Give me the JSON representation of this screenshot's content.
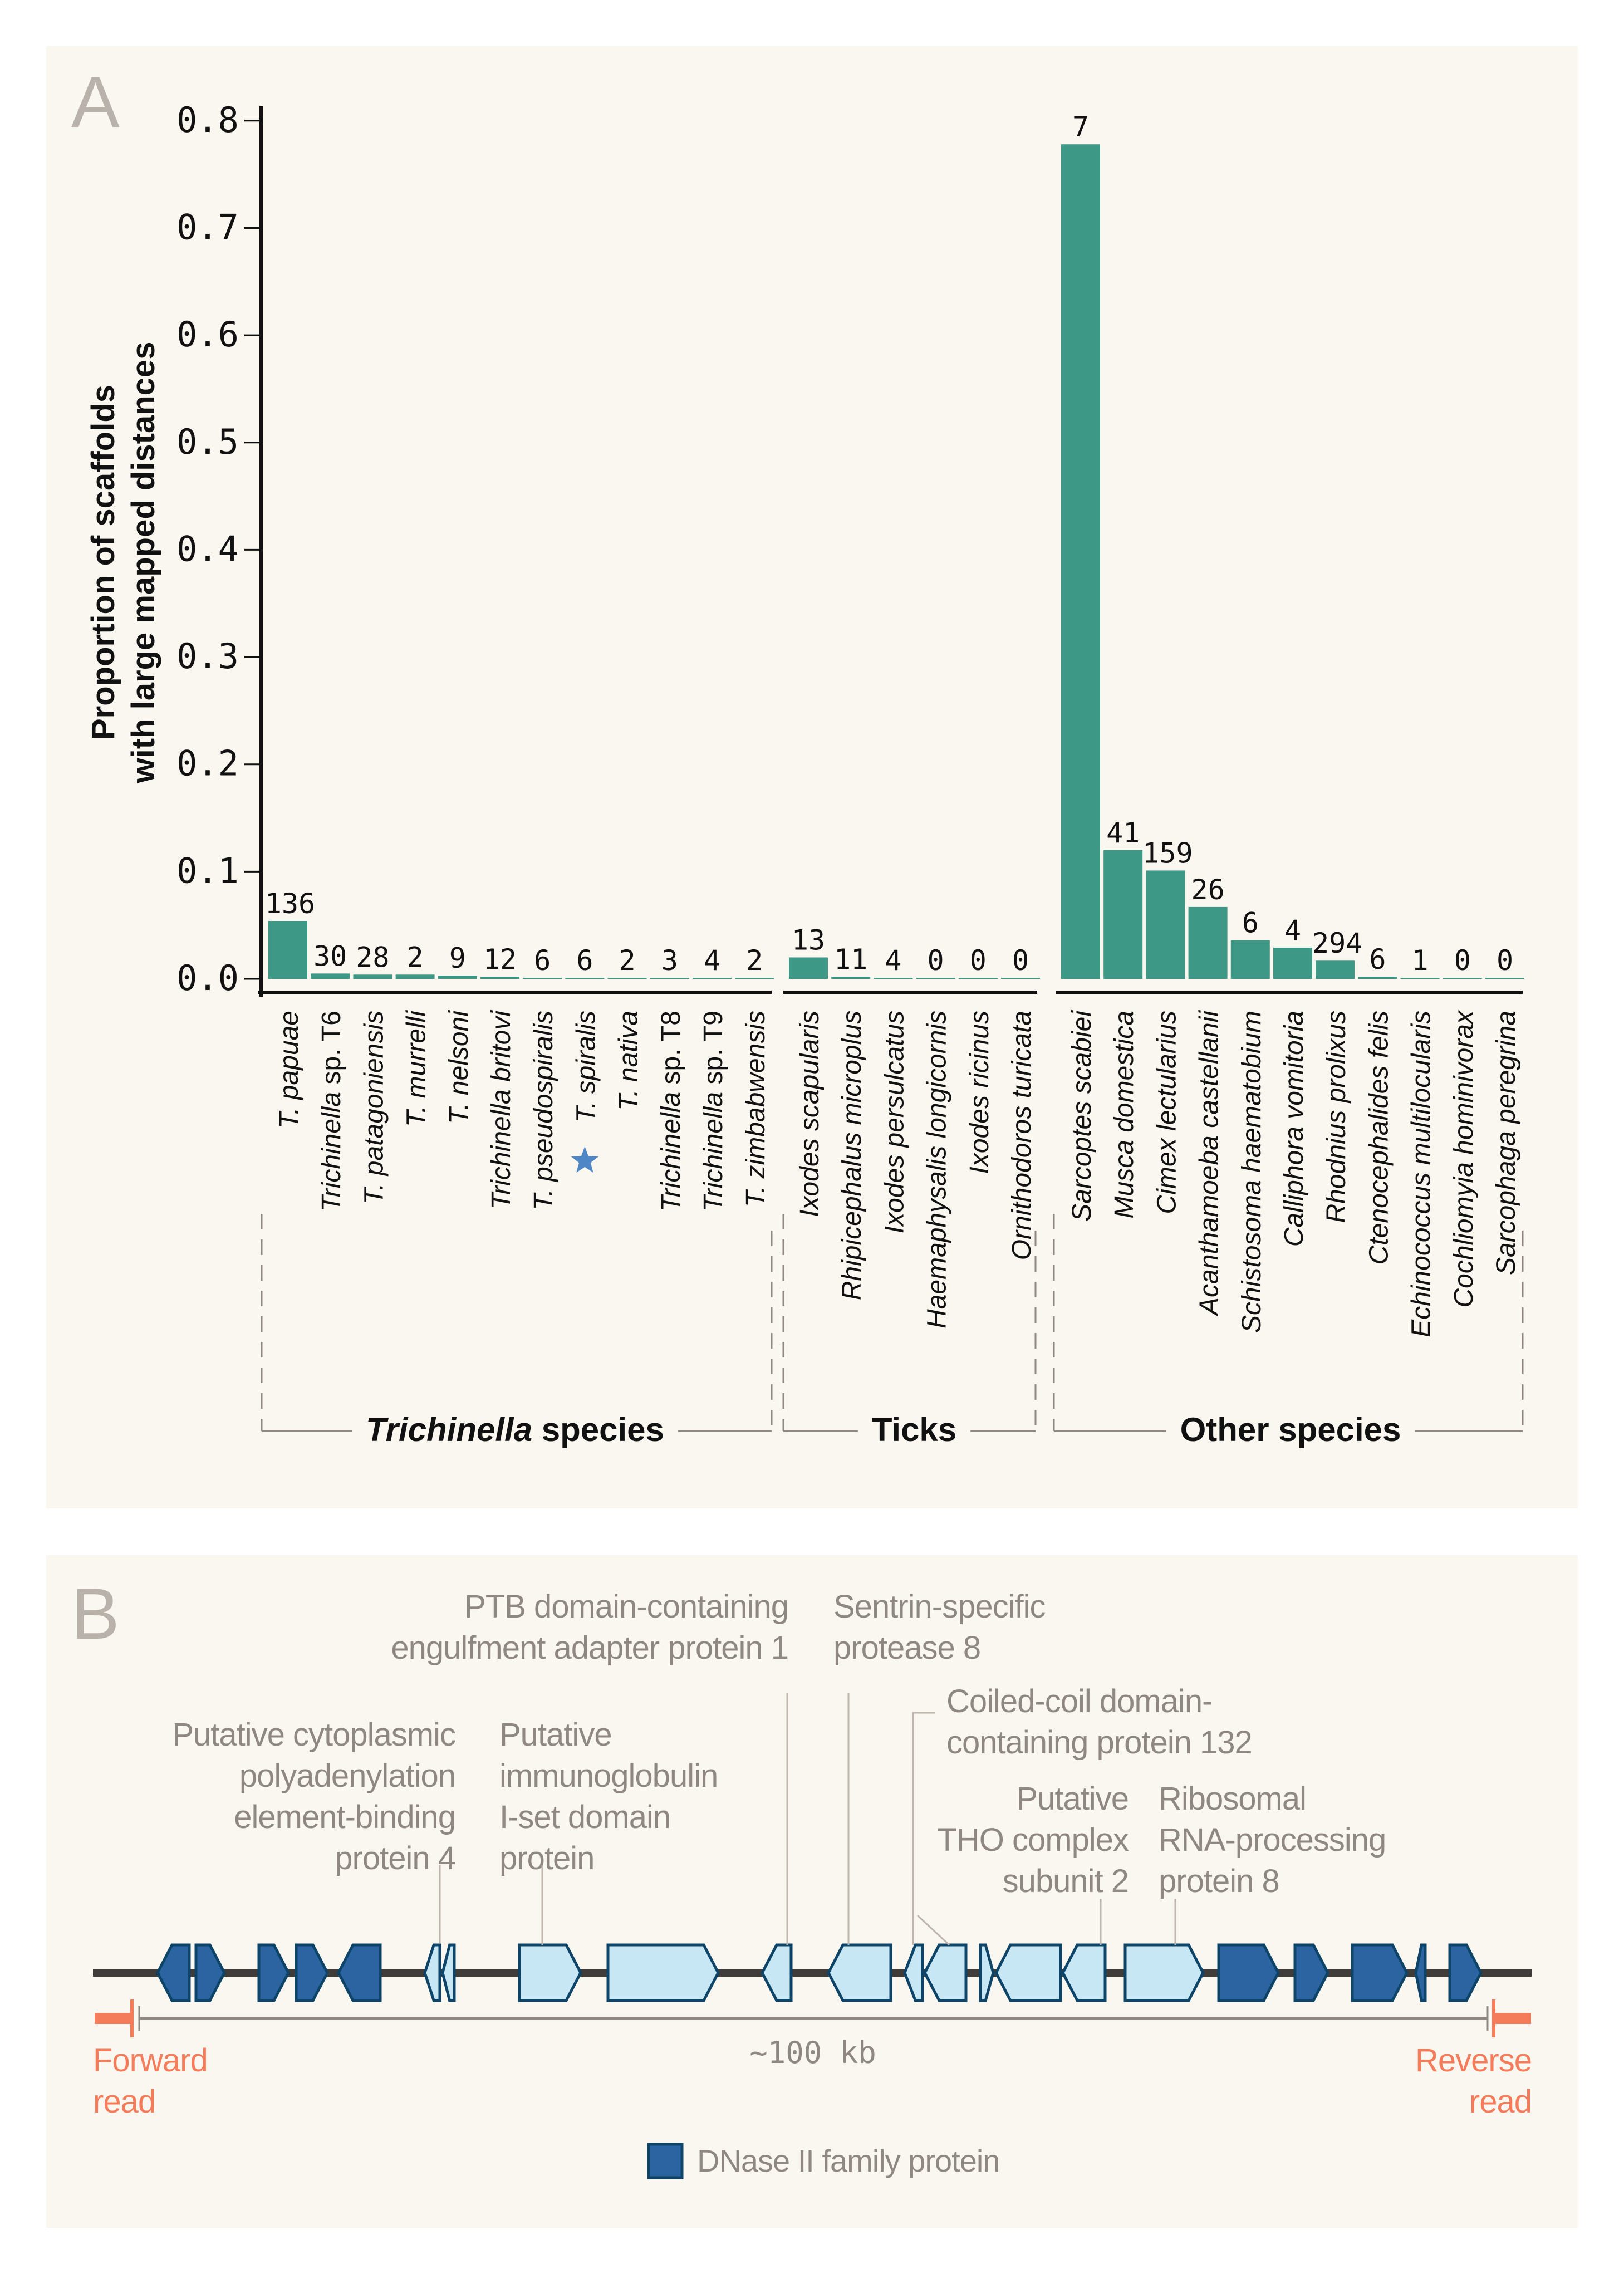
{
  "panelA": {
    "letter": "A",
    "chart_data": {
      "type": "bar",
      "title": "",
      "xlabel": "",
      "ylabel": "Proportion of scaffolds with large mapped distances",
      "ylabel_lines": [
        "Proportion of scaffolds",
        "with large mapped distances"
      ],
      "ylim": [
        0,
        0.8
      ],
      "yticks": [
        "0.0",
        "0.1",
        "0.2",
        "0.3",
        "0.4",
        "0.5",
        "0.6",
        "0.7",
        "0.8"
      ],
      "ytick_values": [
        0,
        0.1,
        0.2,
        0.3,
        0.4,
        0.5,
        0.6,
        0.7,
        0.8
      ],
      "bar_color": "#3d9886",
      "groups": [
        {
          "name": "Trichinella species",
          "name_italic_part": "Trichinella",
          "name_rest": " species",
          "categories": [
            "T. papuae",
            "Trichinella sp. T6",
            "T. patagoniensis",
            "T. murrelli",
            "T. nelsoni",
            "Trichinella britovi",
            "T. pseudospiralis",
            "T. spiralis",
            "T. nativa",
            "Trichinella sp. T8",
            "Trichinella sp. T9",
            "T. zimbabwensis"
          ],
          "values": [
            0.054,
            0.005,
            0.004,
            0.004,
            0.003,
            0.002,
            0.001,
            0.001,
            0.001,
            0.001,
            0.001,
            0.0005
          ],
          "counts": [
            "136",
            "30",
            "28",
            "2",
            "9",
            "12",
            "6",
            "6",
            "2",
            "3",
            "4",
            "2"
          ],
          "highlight": {
            "category": "T. spiralis",
            "marker": "star",
            "color": "#4f86c6"
          }
        },
        {
          "name": "Ticks",
          "categories": [
            "Ixodes scapularis",
            "Rhipicephalus microplus",
            "Ixodes persulcatus",
            "Haemaphysalis longicornis",
            "Ixodes ricinus",
            "Ornithodoros turicata"
          ],
          "values": [
            0.02,
            0.002,
            0.001,
            0,
            0,
            0
          ],
          "counts": [
            "13",
            "11",
            "4",
            "0",
            "0",
            "0"
          ]
        },
        {
          "name": "Other species",
          "categories": [
            "Sarcoptes scabiei",
            "Musca domestica",
            "Cimex lectularius",
            "Acanthamoeba castellanii",
            "Schistosoma haematobium",
            "Calliphora vomitoria",
            "Rhodnius prolixus",
            "Ctenocephalides felis",
            "Echinococcus multilocularis",
            "Cochliomyia hominivorax",
            "Sarcophaga peregrina"
          ],
          "values": [
            0.778,
            0.12,
            0.101,
            0.067,
            0.036,
            0.029,
            0.017,
            0.002,
            0.001,
            0,
            0
          ],
          "counts": [
            "7",
            "41",
            "159",
            "26",
            "6",
            "4",
            "294",
            "6",
            "1",
            "0",
            "0"
          ]
        }
      ],
      "grid": false,
      "legend": "none"
    }
  },
  "panelB": {
    "letter": "B",
    "track_color": "#3f3c3a",
    "gene_light_color": "#c6e7f3",
    "gene_dark_color": "#2b64a0",
    "gene_stroke_color": "#0d4468",
    "annotation_color": "#8f8782",
    "read_color": "#f47c5a",
    "annotations": [
      {
        "lines": [
          "Putative cytoplasmic",
          "polyadenylation",
          "element-binding",
          "protein 4"
        ],
        "align": "right"
      },
      {
        "lines": [
          "Putative",
          "immunoglobulin",
          "I-set domain",
          "protein"
        ],
        "align": "left"
      },
      {
        "lines": [
          "PTB domain-containing",
          "engulfment adapter protein 1"
        ],
        "align": "right"
      },
      {
        "lines": [
          "Sentrin-specific",
          "protease 8"
        ],
        "align": "left"
      },
      {
        "lines": [
          "Coiled-coil domain-",
          "containing protein 132"
        ],
        "align": "left"
      },
      {
        "lines": [
          "Putative",
          "THO complex",
          "subunit 2"
        ],
        "align": "right"
      },
      {
        "lines": [
          "Ribosomal",
          "RNA-processing",
          "protein 8"
        ],
        "align": "left"
      }
    ],
    "genes": [
      {
        "type": "dnase",
        "strand": "-"
      },
      {
        "type": "dnase",
        "strand": "+"
      },
      {
        "type": "dnase",
        "strand": "+"
      },
      {
        "type": "dnase",
        "strand": "+"
      },
      {
        "type": "dnase",
        "strand": "-"
      },
      {
        "type": "other",
        "strand": "-"
      },
      {
        "type": "other",
        "strand": "-"
      },
      {
        "type": "other",
        "strand": "+"
      },
      {
        "type": "other",
        "strand": "+"
      },
      {
        "type": "other",
        "strand": "-"
      },
      {
        "type": "other",
        "strand": "-"
      },
      {
        "type": "other",
        "strand": "-"
      },
      {
        "type": "other",
        "strand": "-"
      },
      {
        "type": "other",
        "strand": "+"
      },
      {
        "type": "other",
        "strand": "-"
      },
      {
        "type": "other",
        "strand": "-"
      },
      {
        "type": "other",
        "strand": "+"
      },
      {
        "type": "dnase",
        "strand": "+"
      },
      {
        "type": "dnase",
        "strand": "+"
      },
      {
        "type": "dnase",
        "strand": "+"
      },
      {
        "type": "dnase",
        "strand": "-"
      },
      {
        "type": "dnase",
        "strand": "+"
      }
    ],
    "scale_label": "~100 kb",
    "forward_read_lines": [
      "Forward",
      "read"
    ],
    "reverse_read_lines": [
      "Reverse",
      "read"
    ],
    "legend_label": "DNase II family protein"
  }
}
